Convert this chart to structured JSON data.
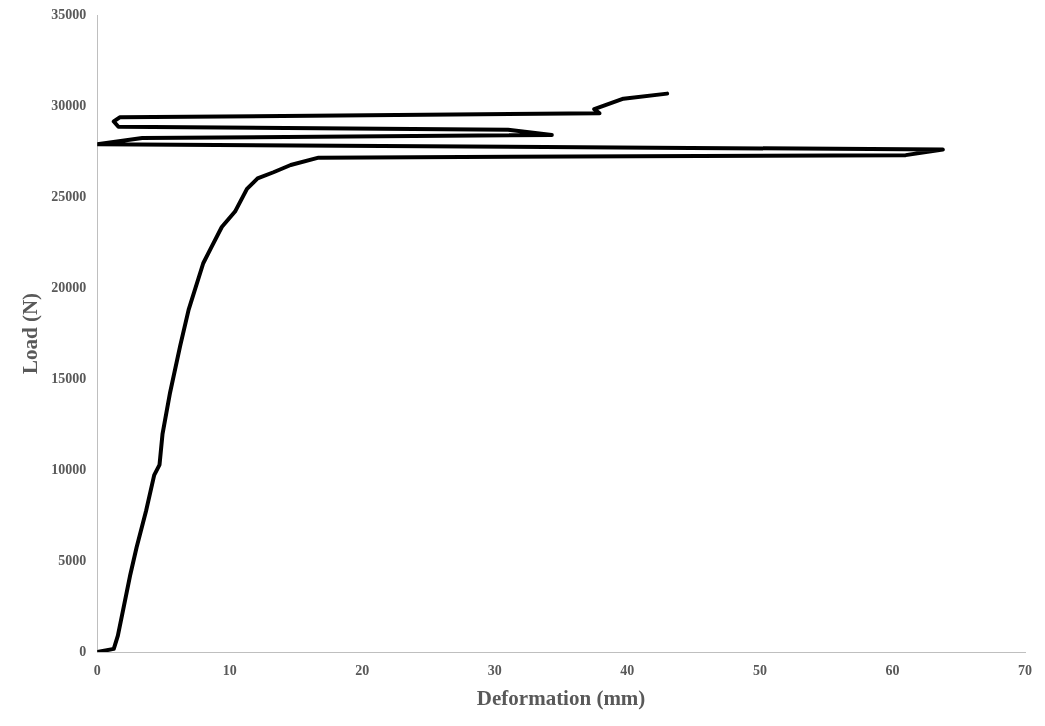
{
  "chart_data": {
    "type": "line",
    "xlabel": "Deformation (mm)",
    "ylabel": "Load (N)",
    "series": [
      {
        "color": "#000000",
        "x": [
          0,
          1.25,
          1.56,
          1.96,
          2.5,
          2.97,
          3.68,
          4.3,
          4.7,
          4.93,
          5.5,
          6.26,
          6.9,
          8.0,
          8.6,
          9.4,
          10.4,
          11.3,
          12.1,
          13.3,
          14.6,
          16.7,
          61,
          63.8,
          0,
          3.4,
          34.3,
          31,
          1.6,
          1.25,
          1.7,
          37.9,
          37.5,
          39.7,
          43.0
        ],
        "values": [
          0,
          170,
          900,
          2330,
          4260,
          5740,
          7730,
          9720,
          10280,
          11990,
          14260,
          16820,
          18810,
          21360,
          22220,
          23350,
          24200,
          25450,
          26020,
          26360,
          26760,
          27160,
          27300,
          27610,
          27900,
          28240,
          28410,
          28690,
          28860,
          29150,
          29380,
          29600,
          29830,
          30400,
          30680
        ]
      }
    ],
    "xlim": [
      0,
      70
    ],
    "xticks": [
      0,
      10,
      20,
      30,
      40,
      50,
      60,
      70
    ],
    "ylim": [
      0,
      35000
    ],
    "yticks": [
      0,
      5000,
      10000,
      15000,
      20000,
      25000,
      30000,
      35000
    ],
    "grid": false,
    "legend": false,
    "marker": "none",
    "line_style": "solid"
  }
}
